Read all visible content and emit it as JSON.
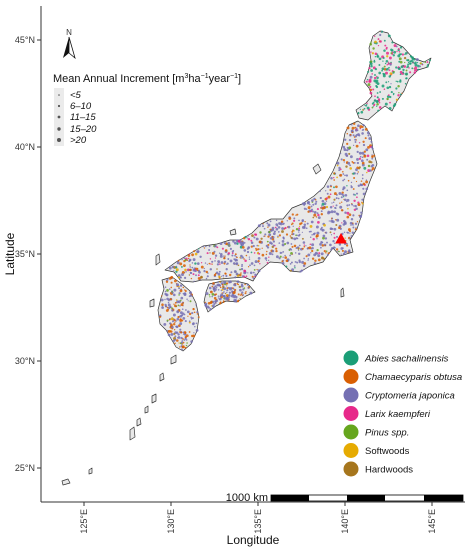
{
  "axes": {
    "x_title": "Longitude",
    "y_title": "Latitude",
    "x_ticks": [
      "125°E",
      "130°E",
      "135°E",
      "140°E",
      "145°E"
    ],
    "y_ticks": [
      "45°N",
      "40°N",
      "35°N",
      "30°N",
      "25°N"
    ]
  },
  "north_arrow": {
    "label": "N"
  },
  "size_legend": {
    "title_prefix": "Mean Annual Increment [m",
    "title_sup1": "3",
    "title_mid1": "ha",
    "title_sup2": "−1",
    "title_mid2": "year",
    "title_sup3": "−1",
    "title_suffix": "]",
    "items": [
      "<5",
      "6–10",
      "11–15",
      "15–20",
      ">20"
    ]
  },
  "species_legend": [
    {
      "label": "Abies sachalinensis",
      "color": "#1b9e77",
      "italic": true
    },
    {
      "label": "Chamaecyparis obtusa",
      "color": "#d95f02",
      "italic": true
    },
    {
      "label": "Cryptomeria japonica",
      "color": "#7570b3",
      "italic": true
    },
    {
      "label": "Larix kaempferi",
      "color": "#e7298a",
      "italic": true
    },
    {
      "label": "Pinus spp.",
      "color": "#66a61e",
      "italic": true
    },
    {
      "label": "Softwoods",
      "color": "#e6ab02",
      "italic": false
    },
    {
      "label": "Hardwoods",
      "color": "#a6761d",
      "italic": false
    }
  ],
  "scale_bar": {
    "label": "1000 km"
  },
  "colors": {
    "land": "#e8e8e8",
    "coast": "#333333",
    "marker": "#ff0000"
  }
}
